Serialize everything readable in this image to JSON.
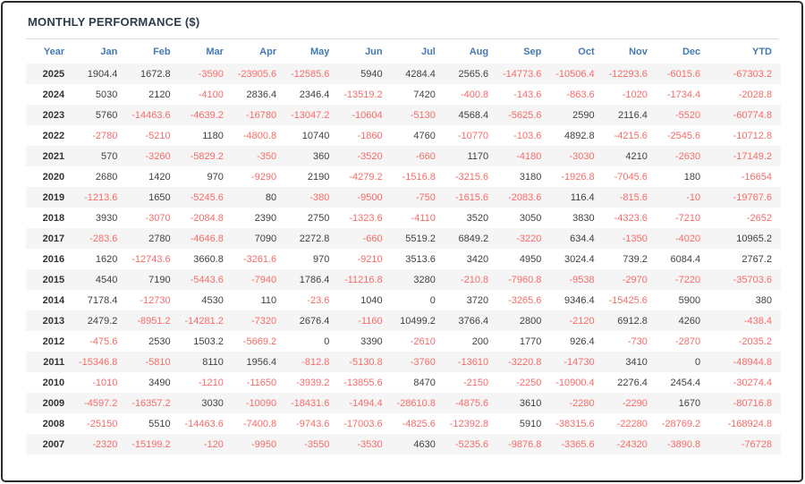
{
  "title": "MONTHLY PERFORMANCE ($)",
  "colors": {
    "header_blue": "#4379b2",
    "negative_red": "#f96b67",
    "positive_dark": "#3f3f3f",
    "title_color": "#2e3c4e",
    "stripe": "#f5f5f5",
    "border_dark": "#2a2a2a"
  },
  "chart_data": {
    "type": "table",
    "title": "MONTHLY PERFORMANCE ($)",
    "columns": [
      "Year",
      "Jan",
      "Feb",
      "Mar",
      "Apr",
      "May",
      "Jun",
      "Jul",
      "Aug",
      "Sep",
      "Oct",
      "Nov",
      "Dec",
      "YTD"
    ],
    "rows": [
      {
        "year": "2025",
        "months": [
          1904.4,
          1672.8,
          -3590,
          -23905.6,
          -12585.6,
          5940,
          4284.4,
          2565.6,
          -14773.6,
          -10506.4,
          -12293.6,
          -6015.6
        ],
        "ytd": -67303.2
      },
      {
        "year": "2024",
        "months": [
          5030,
          2120,
          -4100,
          2836.4,
          2346.4,
          -13519.2,
          7420,
          -400.8,
          -143.6,
          -863.6,
          -1020,
          -1734.4
        ],
        "ytd": -2028.8
      },
      {
        "year": "2023",
        "months": [
          5760,
          -14463.6,
          -4639.2,
          -16780,
          -13047.2,
          -10604,
          -5130,
          4568.4,
          -5625.6,
          2590,
          2116.4,
          -5520
        ],
        "ytd": -60774.8
      },
      {
        "year": "2022",
        "months": [
          -2780,
          -5210,
          1180,
          -4800.8,
          10740,
          -1860,
          4760,
          -10770,
          -103.6,
          4892.8,
          -4215.6,
          -2545.6
        ],
        "ytd": -10712.8
      },
      {
        "year": "2021",
        "months": [
          570,
          -3260,
          -5829.2,
          -350,
          360,
          -3520,
          -660,
          1170,
          -4180,
          -3030,
          4210,
          -2630
        ],
        "ytd": -17149.2
      },
      {
        "year": "2020",
        "months": [
          2680,
          1420,
          970,
          -9290,
          2190,
          -4279.2,
          -1516.8,
          -3215.6,
          3180,
          -1926.8,
          -7045.6,
          180
        ],
        "ytd": -16654
      },
      {
        "year": "2019",
        "months": [
          -1213.6,
          1650,
          -5245.6,
          80,
          -380,
          -9500,
          -750,
          -1615.6,
          -2083.6,
          116.4,
          -815.6,
          -10
        ],
        "ytd": -19767.6
      },
      {
        "year": "2018",
        "months": [
          3930,
          -3070,
          -2084.8,
          2390,
          2750,
          -1323.6,
          -4110,
          3520,
          3050,
          3830,
          -4323.6,
          -7210
        ],
        "ytd": -2652
      },
      {
        "year": "2017",
        "months": [
          -283.6,
          2780,
          -4646.8,
          7090,
          2272.8,
          -660,
          5519.2,
          6849.2,
          -3220,
          634.4,
          -1350,
          -4020
        ],
        "ytd": 10965.2
      },
      {
        "year": "2016",
        "months": [
          1620,
          -12743.6,
          3660.8,
          -3261.6,
          970,
          -9210,
          3513.6,
          3420,
          4950,
          3024.4,
          739.2,
          6084.4
        ],
        "ytd": 2767.2
      },
      {
        "year": "2015",
        "months": [
          4540,
          7190,
          -5443.6,
          -7940,
          1786.4,
          -11216.8,
          3280,
          -210.8,
          -7960.8,
          -9538,
          -2970,
          -7220
        ],
        "ytd": -35703.6
      },
      {
        "year": "2014",
        "months": [
          7178.4,
          -12730,
          4530,
          110,
          -23.6,
          1040,
          0,
          3720,
          -3265.6,
          9346.4,
          -15425.6,
          5900
        ],
        "ytd": 380
      },
      {
        "year": "2013",
        "months": [
          2479.2,
          -8951.2,
          -14281.2,
          -7320,
          2676.4,
          -1160,
          10499.2,
          3766.4,
          2800,
          -2120,
          6912.8,
          4260
        ],
        "ytd": -438.4
      },
      {
        "year": "2012",
        "months": [
          -475.6,
          2530,
          1503.2,
          -5669.2,
          0,
          3390,
          -2610,
          200,
          1770,
          926.4,
          -730,
          -2870
        ],
        "ytd": -2035.2
      },
      {
        "year": "2011",
        "months": [
          -15346.8,
          -5810,
          8110,
          1956.4,
          -812.8,
          -5130.8,
          -3760,
          -13610,
          -3220.8,
          -14730,
          3410,
          0
        ],
        "ytd": -48944.8
      },
      {
        "year": "2010",
        "months": [
          -1010,
          3490,
          -1210,
          -11650,
          -3939.2,
          -13855.6,
          8470,
          -2150,
          -2250,
          -10900.4,
          2276.4,
          2454.4
        ],
        "ytd": -30274.4
      },
      {
        "year": "2009",
        "months": [
          -4597.2,
          -16357.2,
          3030,
          -10090,
          -18431.6,
          -1494.4,
          -28610.8,
          -4875.6,
          3610,
          -2280,
          -2290,
          1670
        ],
        "ytd": -80716.8
      },
      {
        "year": "2008",
        "months": [
          -25150,
          5510,
          -14463.6,
          -7400.8,
          -9743.6,
          -17003.6,
          -4825.6,
          -12392.8,
          5910,
          -38315.6,
          -22280,
          -28769.2
        ],
        "ytd": -168924.8
      },
      {
        "year": "2007",
        "months": [
          -2320,
          -15199.2,
          -120,
          -9950,
          -3550,
          -3530,
          4630,
          -5235.6,
          -9876.8,
          -3365.6,
          -24320,
          -3890.8
        ],
        "ytd": -76728
      }
    ]
  }
}
